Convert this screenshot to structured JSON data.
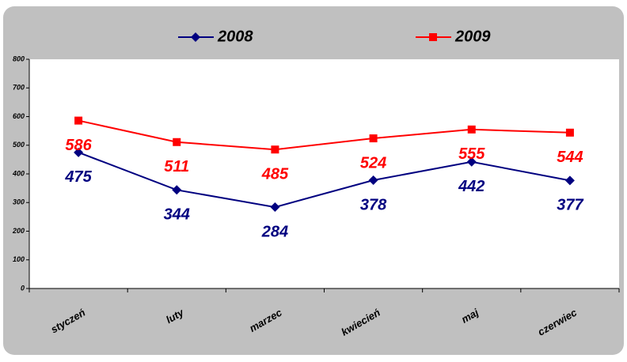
{
  "chart_data": {
    "type": "line",
    "categories": [
      "styczeń",
      "luty",
      "marzec",
      "kwiecień",
      "maj",
      "czerwiec"
    ],
    "series": [
      {
        "name": "2008",
        "color": "#000080",
        "marker": "diamond",
        "values": [
          475,
          344,
          284,
          378,
          442,
          377
        ]
      },
      {
        "name": "2009",
        "color": "#ff0000",
        "marker": "square",
        "values": [
          586,
          511,
          485,
          524,
          555,
          544
        ]
      }
    ],
    "ylim": [
      0,
      800
    ],
    "yticks": [
      0,
      100,
      200,
      300,
      400,
      500,
      600,
      700,
      800
    ],
    "legend": "top"
  }
}
